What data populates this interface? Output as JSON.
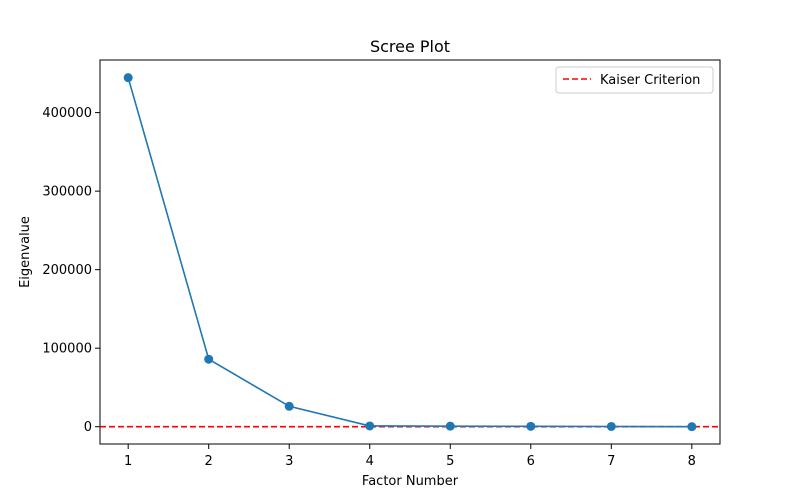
{
  "chart_data": {
    "type": "line",
    "title": "Scree Plot",
    "xlabel": "Factor Number",
    "ylabel": "Eigenvalue",
    "x": [
      1,
      2,
      3,
      4,
      5,
      6,
      7,
      8
    ],
    "series": [
      {
        "values": [
          444500,
          86000,
          26000,
          1000,
          700,
          500,
          300,
          100
        ],
        "color": "#1f77b4",
        "marker": "circle"
      }
    ],
    "reference_line": {
      "name": "Kaiser Criterion",
      "y": 1,
      "color": "#ff0000",
      "style": "dashed"
    },
    "xticks": [
      "1",
      "2",
      "3",
      "4",
      "5",
      "6",
      "7",
      "8"
    ],
    "yticks": [
      "0",
      "100000",
      "200000",
      "300000",
      "400000"
    ],
    "xlim": [
      0.65,
      8.35
    ],
    "ylim": [
      -22000,
      467000
    ],
    "grid": false,
    "legend_position": "top-right"
  }
}
